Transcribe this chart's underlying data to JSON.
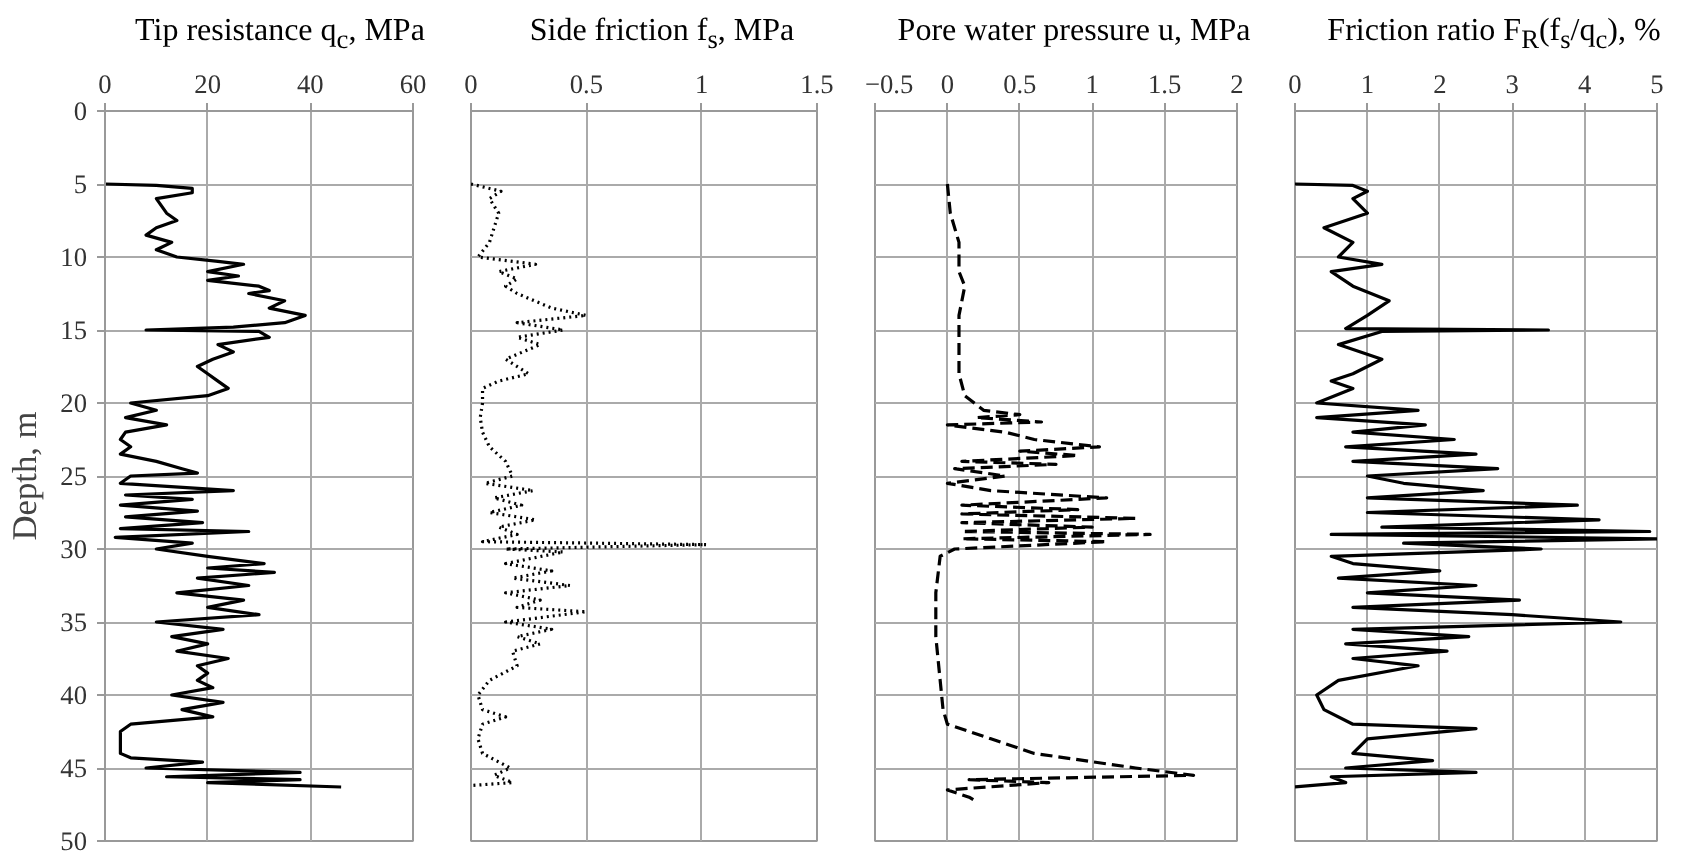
{
  "chart_data": [
    {
      "type": "line",
      "title": "Tip resistance q$_{c}$, MPa",
      "ylabel": "Depth, m",
      "xlim": [
        0,
        60
      ],
      "xticks": [
        0,
        20,
        40,
        60
      ],
      "ylim": [
        50,
        0
      ],
      "yticks": [
        0,
        5,
        10,
        15,
        20,
        25,
        30,
        35,
        40,
        45,
        50
      ],
      "grid": true,
      "line_style": "solid",
      "series": [
        {
          "color": "#000000",
          "x": [
            0,
            10,
            17,
            17,
            10,
            12,
            14,
            10,
            8,
            13,
            10,
            14,
            22,
            27,
            20,
            26,
            20,
            30,
            32,
            28,
            35,
            32,
            39,
            35,
            25,
            8,
            30,
            32,
            22,
            25,
            21,
            18,
            20,
            22,
            24,
            20,
            5,
            10,
            4,
            12,
            4,
            3,
            5,
            3,
            10,
            15,
            18,
            5,
            3,
            25,
            4,
            17,
            3,
            18,
            4,
            19,
            3,
            28,
            2,
            17,
            10,
            20,
            31,
            20,
            33,
            18,
            28,
            14,
            27,
            20,
            30,
            10,
            23,
            13,
            20,
            14,
            24,
            18,
            20,
            18,
            21,
            13,
            23,
            15,
            21,
            5,
            3,
            3,
            5,
            19,
            8,
            38,
            12,
            38,
            20,
            46
          ],
          "values": [
            5,
            5.1,
            5.3,
            5.6,
            6,
            7,
            7.5,
            8,
            8.5,
            9,
            9.5,
            10,
            10.3,
            10.5,
            11,
            11.3,
            11.6,
            12,
            12.3,
            12.5,
            13,
            13.5,
            14,
            14.5,
            14.8,
            15,
            15.1,
            15.5,
            16,
            16.5,
            17,
            17.5,
            18,
            18.5,
            19,
            19.5,
            20,
            20.5,
            21,
            21.5,
            22,
            22.5,
            23,
            23.5,
            24,
            24.5,
            24.8,
            25,
            25.5,
            26,
            26.3,
            26.6,
            27,
            27.4,
            27.8,
            28.2,
            28.6,
            28.8,
            29.2,
            29.6,
            30,
            30.5,
            31,
            31.3,
            31.6,
            32,
            32.5,
            33,
            33.5,
            34,
            34.5,
            35,
            35.5,
            36,
            36.5,
            37,
            37.5,
            38,
            38.5,
            39,
            39.5,
            40,
            40.5,
            41,
            41.5,
            42,
            42.5,
            44,
            44.3,
            44.6,
            45,
            45.3,
            45.6,
            45.8,
            46,
            46.3
          ]
        }
      ]
    },
    {
      "type": "line",
      "title": "Side friction f$_{s}$, MPa",
      "xlim": [
        0,
        1.5
      ],
      "xticks": [
        0,
        0.5,
        1,
        1.5
      ],
      "ylim": [
        50,
        0
      ],
      "yticks": [
        0,
        5,
        10,
        15,
        20,
        25,
        30,
        35,
        40,
        45,
        50
      ],
      "grid": true,
      "line_style": "dotted",
      "tick_labels": "x",
      "series": [
        {
          "color": "#000000",
          "x": [
            0,
            0.13,
            0.08,
            0.12,
            0.1,
            0.08,
            0.03,
            0.28,
            0.12,
            0.2,
            0.15,
            0.2,
            0.35,
            0.5,
            0.2,
            0.4,
            0.2,
            0.3,
            0.15,
            0.25,
            0.12,
            0.05,
            0.05,
            0.04,
            0.05,
            0.08,
            0.15,
            0.18,
            0.06,
            0.27,
            0.1,
            0.22,
            0.08,
            0.28,
            0.12,
            0.2,
            0.05,
            1.02,
            0.15,
            0.4,
            0.15,
            0.35,
            0.18,
            0.43,
            0.15,
            0.3,
            0.2,
            0.5,
            0.15,
            0.35,
            0.2,
            0.3,
            0.18,
            0.2,
            0.08,
            0.03,
            0.05,
            0.15,
            0.05,
            0.03,
            0.05,
            0.17,
            0.1,
            0.18,
            0
          ],
          "values": [
            5,
            5.5,
            6,
            7,
            8,
            9,
            10,
            10.5,
            11,
            11.5,
            12,
            12.5,
            13.5,
            14,
            14.5,
            15,
            15.5,
            16,
            17,
            18,
            18.5,
            19,
            20,
            21,
            22,
            23,
            24,
            25,
            25.5,
            26,
            26.5,
            27,
            27.5,
            28,
            28.5,
            29,
            29.5,
            29.7,
            30,
            30.2,
            31,
            31.5,
            32,
            32.5,
            33,
            33.5,
            34,
            34.3,
            35,
            35.5,
            36,
            36.5,
            37,
            38,
            39,
            40,
            41,
            41.5,
            42,
            43,
            44,
            45,
            45.5,
            46,
            46.2
          ]
        }
      ]
    },
    {
      "type": "line",
      "title": "Pore water pressure u, MPa",
      "xlim": [
        -0.5,
        2
      ],
      "xticks": [
        {
          "value": -0.5,
          "label": "−0.5"
        },
        0,
        0.5,
        1,
        1.5,
        2
      ],
      "ylim": [
        50,
        0
      ],
      "yticks": [
        0,
        5,
        10,
        15,
        20,
        25,
        30,
        35,
        40,
        45,
        50
      ],
      "grid": true,
      "line_style": "dashed",
      "tick_labels": "x",
      "series": [
        {
          "color": "#000000",
          "x": [
            0,
            0.02,
            0.08,
            0.08,
            0.12,
            0.08,
            0.08,
            0.08,
            0.12,
            0.25,
            0.5,
            0.2,
            0.65,
            0,
            0.4,
            0.6,
            1.05,
            0.5,
            0.9,
            0.1,
            0.75,
            0.05,
            0.4,
            0,
            0.3,
            1.1,
            0.1,
            0.9,
            0.1,
            1.3,
            0.1,
            1,
            0.1,
            1.4,
            0.1,
            1.1,
            0.05,
            -0.05,
            -0.08,
            -0.08,
            -0.05,
            -0.03,
            0,
            0.3,
            0.6,
            1.3,
            1.7,
            0.15,
            0.7,
            0,
            0.15,
            0.2
          ],
          "values": [
            5,
            7,
            9,
            11,
            12,
            14,
            16,
            18,
            19.5,
            20.5,
            20.8,
            21,
            21.3,
            21.5,
            22,
            22.5,
            23,
            23.3,
            23.6,
            24,
            24.2,
            24.5,
            25,
            25.5,
            26,
            26.5,
            27,
            27.3,
            27.6,
            27.9,
            28.2,
            28.5,
            28.8,
            29,
            29.3,
            29.5,
            30,
            30.5,
            33,
            36,
            39,
            41,
            42,
            43,
            44,
            45,
            45.5,
            45.8,
            46,
            46.5,
            47,
            47.3
          ]
        }
      ]
    },
    {
      "type": "line",
      "title": "Friction ratio F$_{R}$(f$_{s}$/q$_{c}$), %",
      "xlim": [
        0,
        5
      ],
      "xticks": [
        0,
        1,
        2,
        3,
        4,
        5
      ],
      "ylim": [
        50,
        0
      ],
      "yticks": [
        0,
        5,
        10,
        15,
        20,
        25,
        30,
        35,
        40,
        45,
        50
      ],
      "grid": true,
      "line_style": "solid",
      "tick_labels": "x",
      "series": [
        {
          "color": "#000000",
          "x": [
            0,
            0.8,
            1,
            0.8,
            1,
            0.4,
            0.8,
            0.6,
            1.2,
            0.5,
            0.8,
            1.3,
            1,
            0.7,
            3.5,
            1.2,
            0.6,
            1.2,
            0.8,
            0.5,
            0.8,
            0.3,
            1.7,
            0.3,
            1.8,
            0.8,
            2.2,
            0.7,
            2.5,
            0.8,
            2.8,
            1,
            1.5,
            2.6,
            1,
            3.9,
            1,
            4.2,
            1.2,
            4.9,
            0.5,
            5,
            1.5,
            3.4,
            0.5,
            0.8,
            2,
            0.6,
            2.5,
            1,
            3.1,
            0.8,
            3,
            4.5,
            0.8,
            2.4,
            0.7,
            2.1,
            0.8,
            1.7,
            0.6,
            0.3,
            0.4,
            0.8,
            2.5,
            1,
            0.8,
            1.9,
            0.7,
            2.5,
            0.5,
            0.7,
            0
          ],
          "values": [
            5,
            5.1,
            5.5,
            6,
            7,
            8,
            9,
            10,
            10.5,
            11,
            12,
            13,
            14,
            14.9,
            15,
            15.1,
            16,
            17,
            18,
            18.5,
            19,
            20,
            20.5,
            21,
            21.5,
            22,
            22.5,
            23,
            23.5,
            24,
            24.5,
            25,
            25.5,
            26,
            26.5,
            27,
            27.5,
            28,
            28.5,
            28.8,
            29,
            29.3,
            29.6,
            30,
            30.5,
            31,
            31.5,
            32,
            32.5,
            33,
            33.5,
            34,
            34.5,
            35,
            35.5,
            36,
            36.5,
            37,
            37.5,
            38,
            39,
            40,
            41,
            42,
            42.3,
            43,
            44,
            44.5,
            45,
            45.3,
            45.6,
            46,
            46.3
          ]
        }
      ]
    }
  ]
}
